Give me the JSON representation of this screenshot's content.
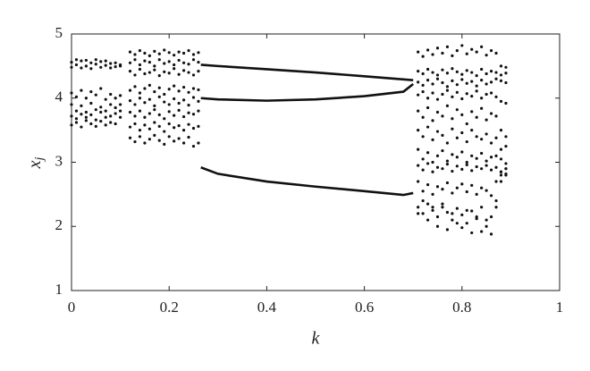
{
  "chart_data": {
    "type": "scatter",
    "xlabel": "k",
    "ylabel": "x",
    "ylabel_subscript": "j",
    "xlim": [
      0,
      1
    ],
    "ylim": [
      1,
      5
    ],
    "xticks": [
      0,
      0.2,
      0.4,
      0.6,
      0.8,
      1
    ],
    "yticks": [
      1,
      2,
      3,
      4,
      5
    ],
    "color": "#111111",
    "series": [
      {
        "mode": "markers",
        "x": [
          0,
          0.01,
          0.02,
          0.03,
          0.04,
          0.05,
          0.06,
          0.07,
          0.08,
          0.09,
          0.1
        ],
        "values": [
          4.56,
          4.52,
          4.58,
          4.5,
          4.55,
          4.53,
          4.57,
          4.51,
          4.54,
          4.49,
          4.52
        ]
      },
      {
        "mode": "markers",
        "x": [
          0,
          0.01,
          0.02,
          0.03,
          0.04,
          0.05,
          0.06,
          0.07,
          0.08,
          0.09,
          0.1
        ],
        "values": [
          4.48,
          4.6,
          4.47,
          4.59,
          4.46,
          4.6,
          4.48,
          4.58,
          4.47,
          4.55,
          4.5
        ]
      },
      {
        "mode": "markers",
        "x": [
          0,
          0.01,
          0.02,
          0.03,
          0.04,
          0.05,
          0.06,
          0.07,
          0.08,
          0.09,
          0.1
        ],
        "values": [
          4.08,
          4.02,
          4.12,
          4.0,
          4.1,
          4.05,
          4.15,
          3.98,
          4.06,
          4.0,
          4.04
        ]
      },
      {
        "mode": "markers",
        "x": [
          0,
          0.01,
          0.02,
          0.03,
          0.04,
          0.05,
          0.06,
          0.07,
          0.08,
          0.09,
          0.1
        ],
        "values": [
          3.9,
          3.8,
          3.88,
          3.78,
          3.92,
          3.82,
          3.86,
          3.8,
          3.9,
          3.85,
          3.9
        ]
      },
      {
        "mode": "markers",
        "x": [
          0,
          0.01,
          0.02,
          0.03,
          0.04,
          0.05,
          0.06,
          0.07,
          0.08,
          0.09,
          0.1
        ],
        "values": [
          3.72,
          3.68,
          3.75,
          3.7,
          3.74,
          3.66,
          3.78,
          3.7,
          3.72,
          3.76,
          3.8
        ]
      },
      {
        "mode": "markers",
        "x": [
          0,
          0.01,
          0.02,
          0.03,
          0.04,
          0.05,
          0.06,
          0.07,
          0.08,
          0.09,
          0.1
        ],
        "values": [
          3.58,
          3.62,
          3.55,
          3.65,
          3.6,
          3.56,
          3.64,
          3.58,
          3.62,
          3.6,
          3.7
        ]
      },
      {
        "mode": "markers",
        "x": [
          0.12,
          0.13,
          0.14,
          0.15,
          0.16,
          0.17,
          0.18,
          0.19,
          0.2,
          0.21,
          0.22,
          0.23,
          0.24,
          0.25,
          0.26
        ],
        "values": [
          4.72,
          4.68,
          4.74,
          4.7,
          4.66,
          4.73,
          4.69,
          4.75,
          4.71,
          4.67,
          4.72,
          4.7,
          4.74,
          4.68,
          4.71
        ]
      },
      {
        "mode": "markers",
        "x": [
          0.12,
          0.13,
          0.14,
          0.15,
          0.16,
          0.17,
          0.18,
          0.19,
          0.2,
          0.21,
          0.22,
          0.23,
          0.24,
          0.25,
          0.26
        ],
        "values": [
          4.55,
          4.6,
          4.52,
          4.58,
          4.56,
          4.5,
          4.6,
          4.54,
          4.57,
          4.52,
          4.59,
          4.55,
          4.53,
          4.6,
          4.56
        ]
      },
      {
        "mode": "markers",
        "x": [
          0.12,
          0.13,
          0.14,
          0.15,
          0.16,
          0.17,
          0.18,
          0.19,
          0.2,
          0.21,
          0.22,
          0.23,
          0.24,
          0.25,
          0.26
        ],
        "values": [
          4.42,
          4.36,
          4.45,
          4.38,
          4.4,
          4.44,
          4.35,
          4.41,
          4.39,
          4.46,
          4.37,
          4.43,
          4.4,
          4.36,
          4.42
        ]
      },
      {
        "mode": "markers",
        "x": [
          0.12,
          0.13,
          0.14,
          0.15,
          0.16,
          0.17,
          0.18,
          0.19,
          0.2,
          0.21,
          0.22,
          0.23,
          0.24,
          0.25,
          0.26
        ],
        "values": [
          4.12,
          4.18,
          4.08,
          4.15,
          4.2,
          4.1,
          4.16,
          4.06,
          4.14,
          4.19,
          4.11,
          4.17,
          4.09,
          4.15,
          4.13
        ]
      },
      {
        "mode": "markers",
        "x": [
          0.12,
          0.13,
          0.14,
          0.15,
          0.16,
          0.17,
          0.18,
          0.19,
          0.2,
          0.21,
          0.22,
          0.23,
          0.24,
          0.25,
          0.26
        ],
        "values": [
          3.96,
          3.9,
          4.0,
          3.93,
          3.98,
          3.88,
          4.02,
          3.94,
          3.9,
          3.99,
          3.92,
          3.97,
          3.89,
          4.01,
          3.95
        ]
      },
      {
        "mode": "markers",
        "x": [
          0.12,
          0.13,
          0.14,
          0.15,
          0.16,
          0.17,
          0.18,
          0.19,
          0.2,
          0.21,
          0.22,
          0.23,
          0.24,
          0.25,
          0.26
        ],
        "values": [
          3.78,
          3.72,
          3.8,
          3.7,
          3.76,
          3.82,
          3.74,
          3.68,
          3.79,
          3.73,
          3.81,
          3.71,
          3.77,
          3.75,
          3.8
        ]
      },
      {
        "mode": "markers",
        "x": [
          0.12,
          0.13,
          0.14,
          0.15,
          0.16,
          0.17,
          0.18,
          0.19,
          0.2,
          0.21,
          0.22,
          0.23,
          0.24,
          0.25,
          0.26
        ],
        "values": [
          3.55,
          3.6,
          3.5,
          3.58,
          3.52,
          3.62,
          3.56,
          3.48,
          3.6,
          3.54,
          3.57,
          3.5,
          3.59,
          3.53,
          3.56
        ]
      },
      {
        "mode": "markers",
        "x": [
          0.12,
          0.13,
          0.14,
          0.15,
          0.16,
          0.17,
          0.18,
          0.19,
          0.2,
          0.21,
          0.22,
          0.23,
          0.24,
          0.25,
          0.26
        ],
        "values": [
          3.38,
          3.32,
          3.4,
          3.3,
          3.36,
          3.42,
          3.34,
          3.28,
          3.4,
          3.33,
          3.37,
          3.3,
          3.39,
          3.25,
          3.3
        ]
      },
      {
        "mode": "markers",
        "x": [
          0.71,
          0.72,
          0.73,
          0.74,
          0.75,
          0.76,
          0.77,
          0.78,
          0.79,
          0.8,
          0.81,
          0.82,
          0.83,
          0.84,
          0.85,
          0.86,
          0.87,
          0.88,
          0.89
        ],
        "values": [
          4.72,
          4.65,
          4.75,
          4.68,
          4.78,
          4.7,
          4.8,
          4.66,
          4.74,
          4.82,
          4.69,
          4.76,
          4.72,
          4.8,
          4.67,
          4.74,
          4.7,
          4.5,
          4.48
        ]
      },
      {
        "mode": "markers",
        "x": [
          0.71,
          0.72,
          0.73,
          0.74,
          0.75,
          0.76,
          0.77,
          0.78,
          0.79,
          0.8,
          0.81,
          0.82,
          0.83,
          0.84,
          0.85,
          0.86,
          0.87,
          0.88,
          0.89
        ],
        "values": [
          4.42,
          4.38,
          4.45,
          4.4,
          4.36,
          4.44,
          4.39,
          4.46,
          4.41,
          4.37,
          4.43,
          4.4,
          4.35,
          4.45,
          4.38,
          4.42,
          4.4,
          4.36,
          4.39
        ]
      },
      {
        "mode": "markers",
        "x": [
          0.71,
          0.72,
          0.73,
          0.74,
          0.75,
          0.76,
          0.77,
          0.78,
          0.79,
          0.8,
          0.81,
          0.82,
          0.83,
          0.84,
          0.85,
          0.86,
          0.87,
          0.88,
          0.89
        ],
        "values": [
          4.25,
          4.2,
          4.28,
          4.22,
          4.3,
          4.24,
          4.18,
          4.27,
          4.21,
          4.29,
          4.23,
          4.26,
          4.19,
          4.28,
          4.22,
          4.25,
          4.3,
          4.27,
          4.24
        ]
      },
      {
        "mode": "markers",
        "x": [
          0.71,
          0.72,
          0.73,
          0.74,
          0.75,
          0.76,
          0.77,
          0.78,
          0.79,
          0.8,
          0.81,
          0.82,
          0.83,
          0.84,
          0.85,
          0.86,
          0.87,
          0.88,
          0.89
        ],
        "values": [
          4.05,
          4.1,
          4.0,
          4.08,
          3.98,
          4.06,
          4.12,
          4.02,
          4.09,
          3.99,
          4.07,
          4.03,
          4.11,
          4.0,
          4.06,
          4.08,
          4.02,
          3.95,
          3.92
        ]
      },
      {
        "mode": "markers",
        "x": [
          0.71,
          0.72,
          0.73,
          0.74,
          0.75,
          0.76,
          0.77,
          0.78,
          0.79,
          0.8,
          0.81,
          0.82,
          0.83,
          0.84,
          0.85,
          0.86,
          0.87,
          0.88,
          0.89
        ],
        "values": [
          3.8,
          3.7,
          3.85,
          3.65,
          3.78,
          3.72,
          3.88,
          3.68,
          3.82,
          3.74,
          3.6,
          3.79,
          3.7,
          3.84,
          3.66,
          3.76,
          3.72,
          3.5,
          3.4
        ]
      },
      {
        "mode": "markers",
        "x": [
          0.71,
          0.72,
          0.73,
          0.74,
          0.75,
          0.76,
          0.77,
          0.78,
          0.79,
          0.8,
          0.81,
          0.82,
          0.83,
          0.84,
          0.85,
          0.86,
          0.87,
          0.88,
          0.89
        ],
        "values": [
          3.5,
          3.4,
          3.55,
          3.35,
          3.48,
          3.42,
          3.3,
          3.52,
          3.38,
          3.46,
          3.32,
          3.5,
          3.4,
          3.36,
          3.44,
          3.3,
          3.38,
          3.2,
          3.25
        ]
      },
      {
        "mode": "markers",
        "x": [
          0.71,
          0.72,
          0.73,
          0.74,
          0.75,
          0.76,
          0.77,
          0.78,
          0.79,
          0.8,
          0.81,
          0.82,
          0.83,
          0.84,
          0.85,
          0.86,
          0.87,
          0.88,
          0.89
        ],
        "values": [
          3.2,
          3.05,
          3.15,
          3.0,
          3.1,
          3.18,
          3.02,
          3.12,
          3.08,
          3.16,
          3.0,
          3.1,
          3.06,
          3.14,
          3.02,
          3.08,
          3.1,
          3.05,
          2.98
        ]
      },
      {
        "mode": "markers",
        "x": [
          0.71,
          0.72,
          0.73,
          0.74,
          0.75,
          0.76,
          0.77,
          0.78,
          0.79,
          0.8,
          0.81,
          0.82,
          0.83,
          0.84,
          0.85,
          0.86,
          0.87,
          0.88,
          0.89
        ],
        "values": [
          2.95,
          2.88,
          2.98,
          2.85,
          2.92,
          2.9,
          2.97,
          2.86,
          2.94,
          2.89,
          2.96,
          2.87,
          2.93,
          2.9,
          2.95,
          2.88,
          2.92,
          2.85,
          2.9
        ]
      },
      {
        "mode": "markers",
        "x": [
          0.71,
          0.72,
          0.73,
          0.74,
          0.75,
          0.76,
          0.77,
          0.78,
          0.79,
          0.8,
          0.81,
          0.82,
          0.83,
          0.84,
          0.85,
          0.86,
          0.87,
          0.88,
          0.89
        ],
        "values": [
          2.7,
          2.55,
          2.65,
          2.5,
          2.62,
          2.58,
          2.68,
          2.52,
          2.6,
          2.66,
          2.54,
          2.64,
          2.5,
          2.6,
          2.56,
          2.48,
          2.7,
          2.8,
          2.82
        ]
      },
      {
        "mode": "markers",
        "x": [
          0.71,
          0.72,
          0.73,
          0.74,
          0.75,
          0.76,
          0.77,
          0.78,
          0.79,
          0.8,
          0.81,
          0.82,
          0.83,
          0.84,
          0.85,
          0.86,
          0.87,
          0.88,
          0.89
        ],
        "values": [
          2.3,
          2.2,
          2.35,
          2.25,
          2.15,
          2.3,
          2.22,
          2.1,
          2.28,
          2.18,
          2.05,
          2.24,
          2.12,
          2.3,
          2.0,
          2.15,
          2.3,
          2.7,
          2.8
        ]
      },
      {
        "mode": "markers",
        "x": [
          0.71,
          0.72,
          0.73,
          0.74,
          0.75,
          0.76,
          0.77,
          0.78,
          0.79,
          0.8,
          0.81,
          0.82,
          0.83,
          0.84,
          0.85,
          0.86,
          0.87,
          0.88,
          0.89
        ],
        "values": [
          2.2,
          2.4,
          2.1,
          2.3,
          2.0,
          2.35,
          1.95,
          2.2,
          2.05,
          1.98,
          2.25,
          1.9,
          2.15,
          1.92,
          2.1,
          1.88,
          2.4,
          2.85,
          2.9
        ]
      },
      {
        "mode": "line",
        "x": [
          0.265,
          0.3,
          0.4,
          0.5,
          0.6,
          0.7
        ],
        "values": [
          4.52,
          4.5,
          4.45,
          4.4,
          4.34,
          4.28
        ]
      },
      {
        "mode": "line",
        "x": [
          0.265,
          0.3,
          0.4,
          0.5,
          0.6,
          0.68,
          0.7
        ],
        "values": [
          4.0,
          3.98,
          3.96,
          3.98,
          4.03,
          4.1,
          4.22
        ]
      },
      {
        "mode": "line",
        "x": [
          0.265,
          0.3,
          0.4,
          0.5,
          0.6,
          0.68,
          0.7
        ],
        "values": [
          2.92,
          2.82,
          2.7,
          2.62,
          2.55,
          2.49,
          2.52
        ]
      }
    ]
  }
}
